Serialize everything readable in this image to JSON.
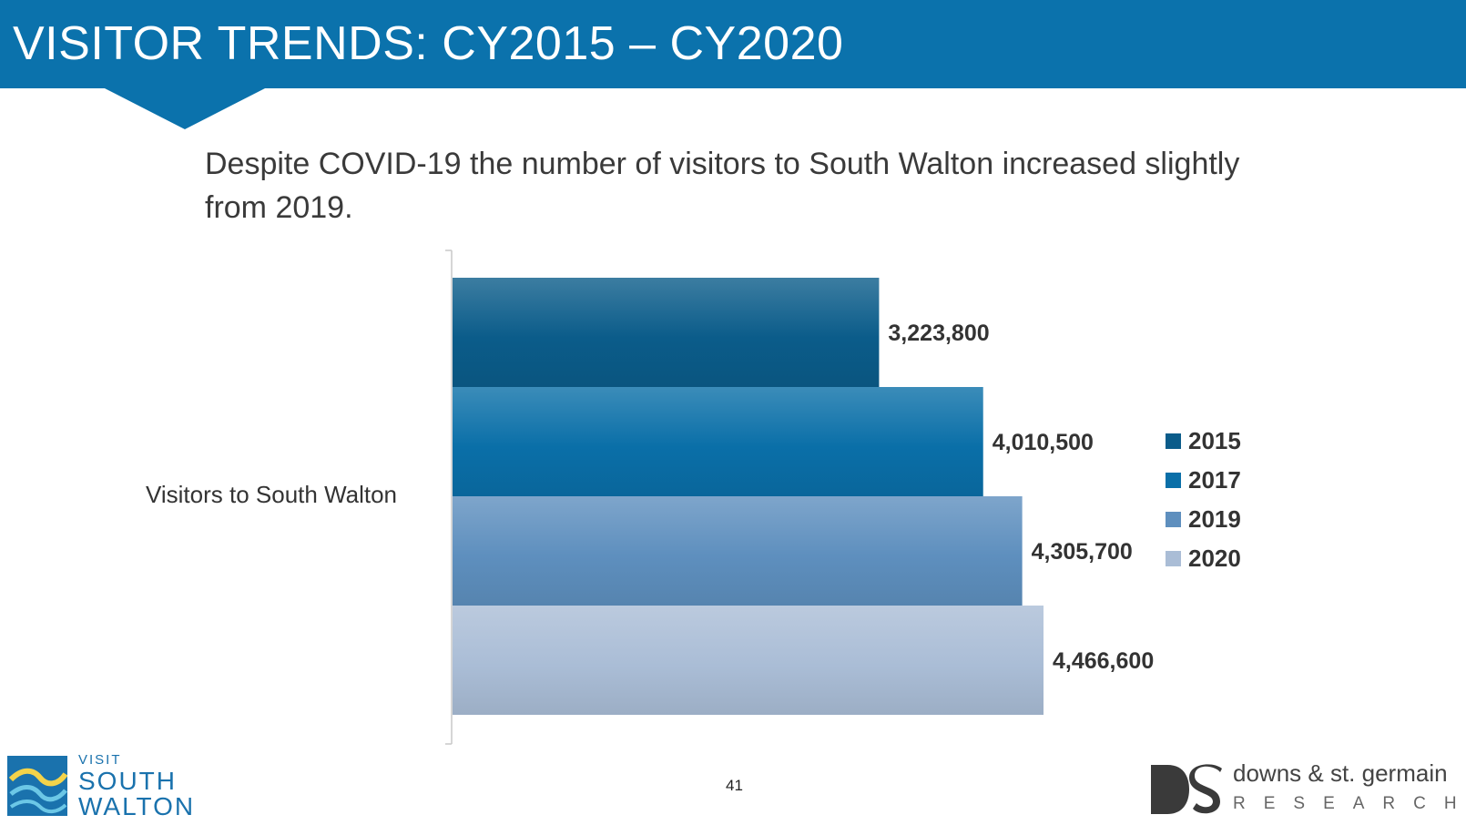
{
  "header": {
    "title": "VISITOR TRENDS: CY2015 – CY2020"
  },
  "subtitle": "Despite COVID-19 the number of visitors to South Walton increased slightly from 2019.",
  "chart_data": {
    "type": "bar",
    "orientation": "horizontal",
    "categories": [
      "Visitors to South Walton"
    ],
    "series": [
      {
        "name": "2015",
        "values": [
          3223800
        ],
        "label": "3,223,800",
        "color": "#0b5c8a"
      },
      {
        "name": "2017",
        "values": [
          4010500
        ],
        "label": "4,010,500",
        "color": "#0a6fa8"
      },
      {
        "name": "2019",
        "values": [
          4305700
        ],
        "label": "4,305,700",
        "color": "#5e8fbe"
      },
      {
        "name": "2020",
        "values": [
          4466600
        ],
        "label": "4,466,600",
        "color": "#aabdd6"
      }
    ],
    "xlim": [
      0,
      7000000
    ],
    "grid": false,
    "legend_position": "right"
  },
  "page_number": "41",
  "logos": {
    "left": {
      "visit": "VISIT",
      "south": "SOUTH",
      "walton": "WALTON"
    },
    "right": {
      "name": "downs & st. germain",
      "research": "RESEARCH"
    }
  }
}
